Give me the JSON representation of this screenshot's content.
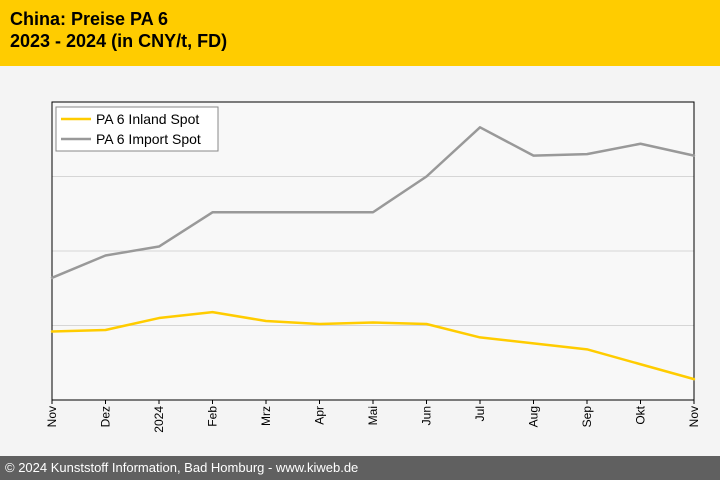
{
  "header": {
    "title_line1": "China: Preise PA 6",
    "title_line2": "2023 - 2024 (in CNY/t, FD)"
  },
  "footer": {
    "copyright": "© 2024 Kunststoff Information, Bad Homburg - www.kiweb.de"
  },
  "colors": {
    "header_bg": "#ffcc00",
    "footer_bg": "#606060",
    "series_inland": "#ffcc00",
    "series_import": "#999999"
  },
  "chart_data": {
    "type": "line",
    "title": "China: Preise PA 6",
    "subtitle": "2023 - 2024 (in CNY/t, FD)",
    "xlabel": "",
    "ylabel": "",
    "categories": [
      "Nov",
      "Dez",
      "2024",
      "Feb",
      "Mrz",
      "Apr",
      "Mai",
      "Jun",
      "Jul",
      "Aug",
      "Sep",
      "Okt",
      "Nov"
    ],
    "ylim": [
      0,
      100
    ],
    "y_gridlines": [
      25,
      50,
      75
    ],
    "y_tick_labels_shown": false,
    "grid": "horizontal",
    "legend_position": "top-left",
    "series": [
      {
        "name": "PA 6 Inland Spot",
        "color": "#ffcc00",
        "values": [
          23,
          23.5,
          27.5,
          29.5,
          26.5,
          25.5,
          26,
          25.5,
          21,
          19,
          17,
          12,
          7
        ]
      },
      {
        "name": "PA 6 Import Spot",
        "color": "#999999",
        "values": [
          41,
          48.5,
          51.5,
          63,
          63,
          63,
          63,
          75,
          91.5,
          82,
          82.5,
          86,
          82
        ]
      }
    ]
  }
}
